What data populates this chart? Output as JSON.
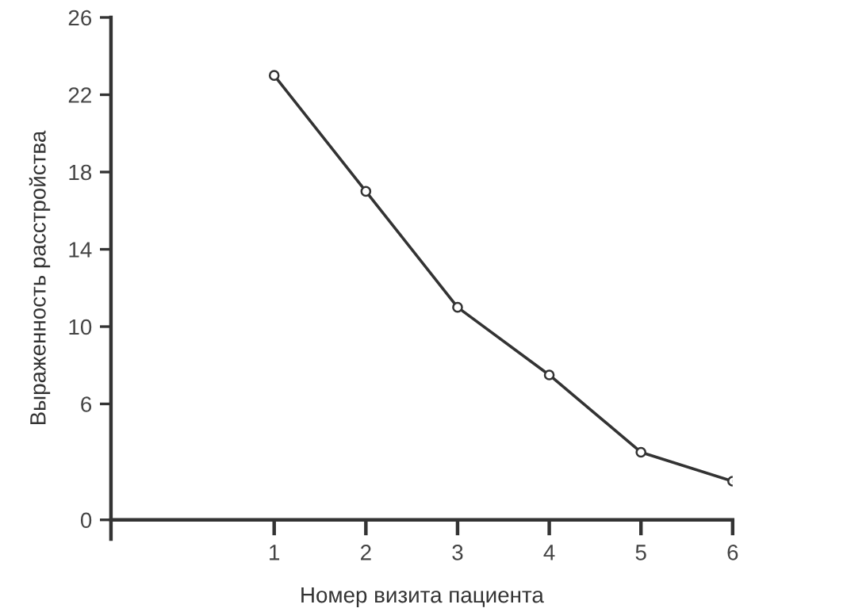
{
  "chart_data": {
    "type": "line",
    "xlabel": "Номер визита пациента",
    "ylabel": "Выраженность расстройства",
    "x": [
      1,
      2,
      3,
      4,
      5,
      6
    ],
    "series": [
      {
        "color": "#333333",
        "values": [
          23,
          17,
          11,
          7.5,
          3.5,
          2
        ]
      }
    ],
    "xlim": [
      -0.78,
      6
    ],
    "xticks": [
      1,
      2,
      3,
      4,
      5,
      6
    ],
    "ylim": [
      -1,
      26
    ],
    "yticks": [
      0,
      6,
      10,
      14,
      18,
      22,
      26
    ],
    "marker": "circle",
    "line_style": "solid",
    "grid": false,
    "legend": false
  }
}
